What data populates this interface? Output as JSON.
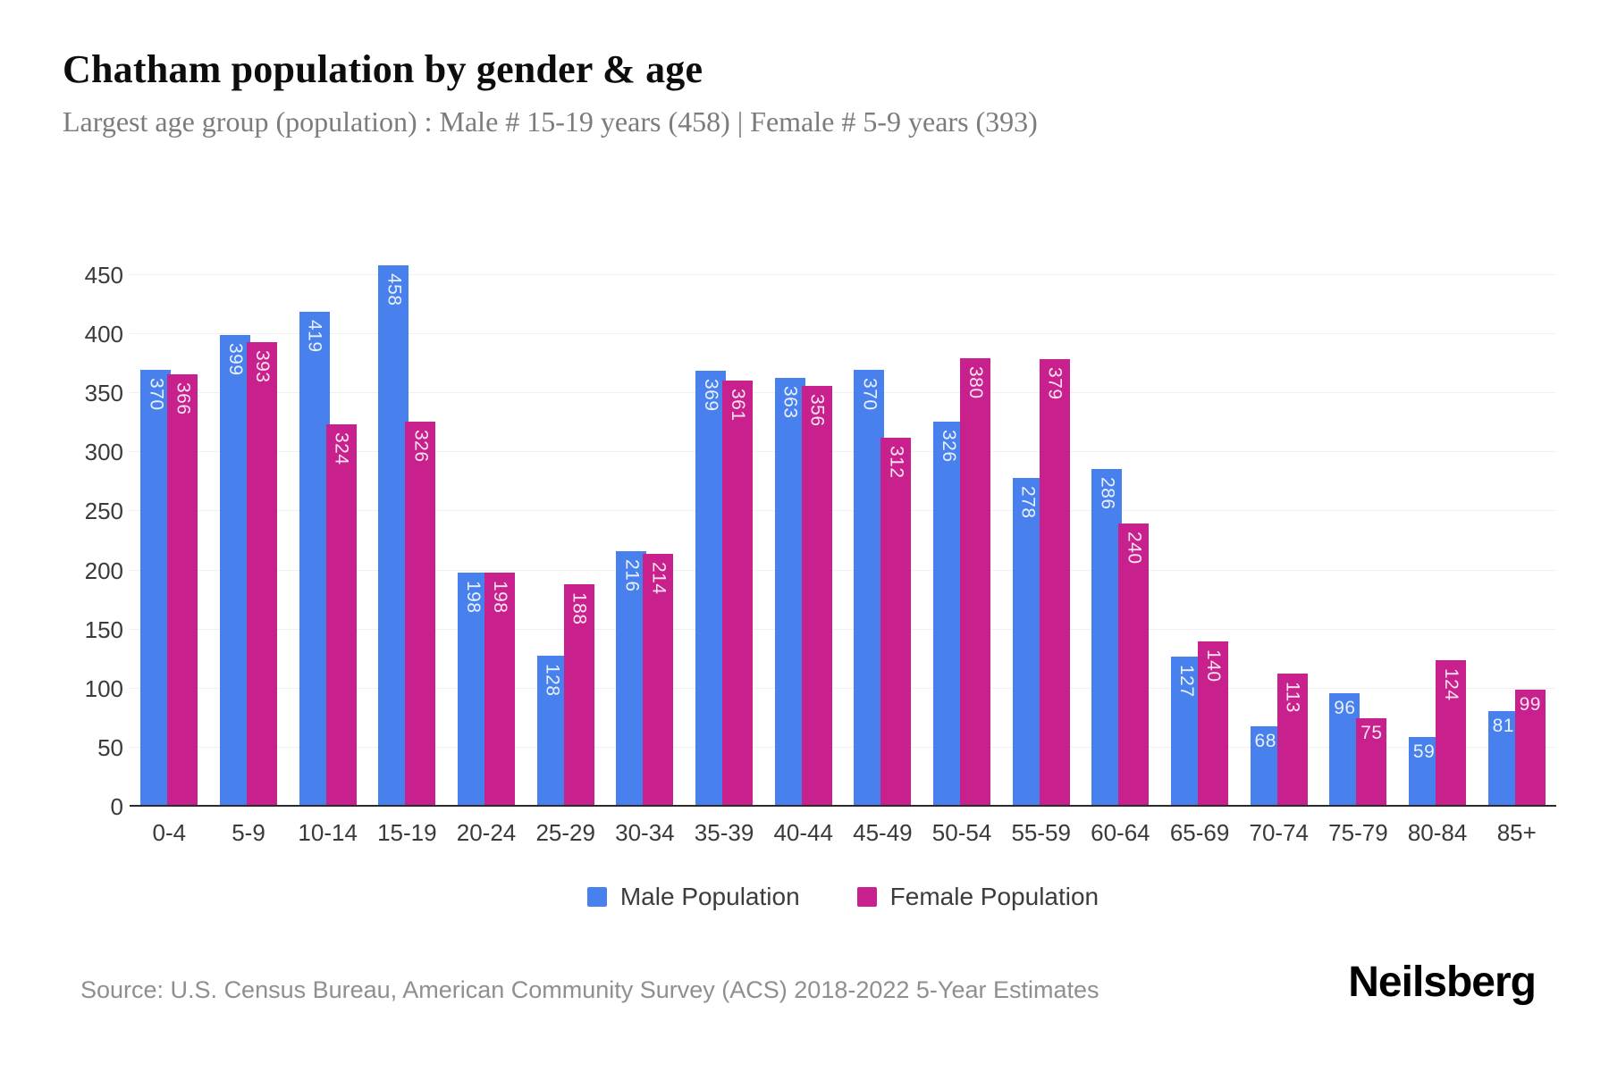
{
  "header": {
    "title": "Chatham population by gender & age",
    "subtitle": "Largest age group (population) : Male # 15-19 years (458) | Female # 5-9 years (393)"
  },
  "chart_data": {
    "type": "bar",
    "title": "Chatham population by gender & age",
    "categories": [
      "0-4",
      "5-9",
      "10-14",
      "15-19",
      "20-24",
      "25-29",
      "30-34",
      "35-39",
      "40-44",
      "45-49",
      "50-54",
      "55-59",
      "60-64",
      "65-69",
      "70-74",
      "75-79",
      "80-84",
      "85+"
    ],
    "series": [
      {
        "name": "Male Population",
        "color": "#4880ee",
        "values": [
          370,
          399,
          419,
          458,
          198,
          128,
          216,
          369,
          363,
          370,
          326,
          278,
          286,
          127,
          68,
          96,
          59,
          81
        ]
      },
      {
        "name": "Female Population",
        "color": "#c8208c",
        "values": [
          366,
          393,
          324,
          326,
          198,
          188,
          214,
          361,
          356,
          312,
          380,
          379,
          240,
          140,
          113,
          75,
          124,
          99
        ]
      }
    ],
    "xlabel": "",
    "ylabel": "",
    "ylim": [
      0,
      450
    ],
    "yticks": [
      0,
      50,
      100,
      150,
      200,
      250,
      300,
      350,
      400,
      450
    ],
    "grid": "horizontal",
    "legend_position": "bottom",
    "value_labels": "inside-top"
  },
  "legend": {
    "male_label": "Male Population",
    "female_label": "Female Population"
  },
  "footer": {
    "source": "Source: U.S. Census Bureau, American Community Survey (ACS) 2018-2022 5-Year Estimates",
    "brand": "Neilsberg"
  },
  "colors": {
    "male_bar": "#4880ee",
    "female_bar": "#c8208c",
    "grid_line": "#f0f0f0",
    "axis_line": "#2b2b2b",
    "tick_text": "#3a3a3a",
    "subtitle_text": "#7c7c7c",
    "source_text": "#8f8f8f"
  }
}
